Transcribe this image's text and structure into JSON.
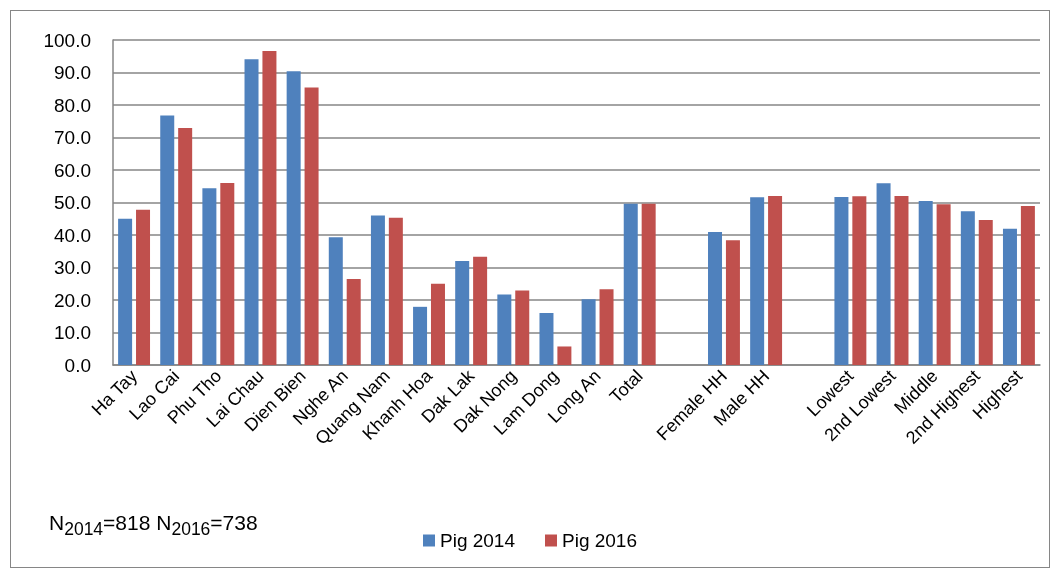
{
  "chart_data": {
    "type": "bar",
    "categories": [
      "Ha Tay",
      "Lao Cai",
      "Phu Tho",
      "Lai Chau",
      "Dien Bien",
      "Nghe An",
      "Quang Nam",
      "Khanh Hoa",
      "Dak Lak",
      "Dak Nong",
      "Lam Dong",
      "Long An",
      "Total",
      null,
      "Female HH",
      "Male HH",
      null,
      "Lowest",
      "2nd Lowest",
      "Middle",
      "2nd Highest",
      "Highest"
    ],
    "series": [
      {
        "name": "Pig 2014",
        "color": "#4f81bd",
        "values": [
          45.0,
          76.8,
          54.4,
          94.1,
          90.4,
          39.3,
          46.0,
          17.9,
          32.0,
          21.7,
          16.0,
          20.2,
          49.6,
          null,
          40.9,
          51.6,
          null,
          51.7,
          55.9,
          50.5,
          47.3,
          41.9
        ]
      },
      {
        "name": "Pig 2016",
        "color": "#c0504d",
        "values": [
          47.8,
          72.9,
          56.0,
          96.6,
          85.4,
          26.5,
          45.3,
          25.0,
          33.3,
          22.9,
          5.7,
          23.3,
          49.6,
          null,
          38.4,
          52.0,
          null,
          51.9,
          52.0,
          49.5,
          44.6,
          48.9
        ]
      }
    ],
    "ylim": [
      0,
      100
    ],
    "yticks": [
      {
        "value": 0,
        "label": "0.0"
      },
      {
        "value": 10,
        "label": "10.0"
      },
      {
        "value": 20,
        "label": "20.0"
      },
      {
        "value": 30,
        "label": "30.0"
      },
      {
        "value": 40,
        "label": "40.0"
      },
      {
        "value": 50,
        "label": "50.0"
      },
      {
        "value": 60,
        "label": "60.0"
      },
      {
        "value": 70,
        "label": "70.0"
      },
      {
        "value": 80,
        "label": "80.0"
      },
      {
        "value": 90,
        "label": "90.0"
      },
      {
        "value": 100,
        "label": "100.0"
      }
    ],
    "grid": "y",
    "legend": "bottom",
    "annotations": [
      "N$_{2014}$=818 N$_{2016}$=738"
    ]
  }
}
